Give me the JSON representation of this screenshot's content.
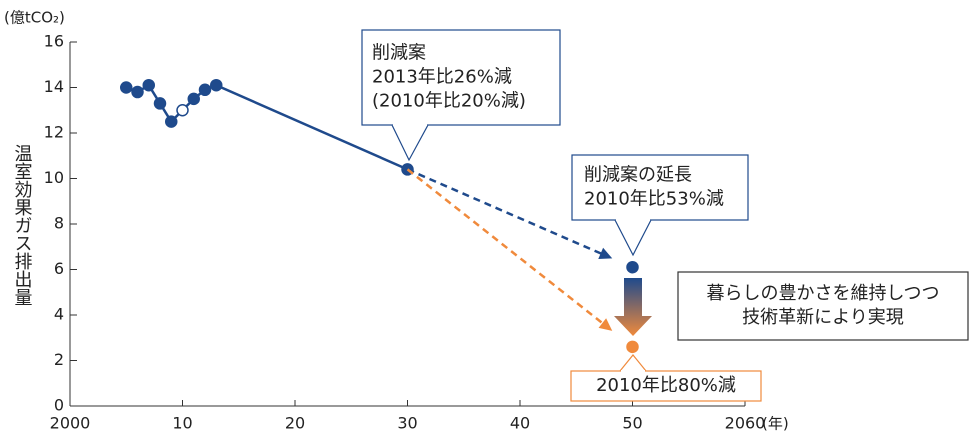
{
  "chart_data": {
    "type": "line",
    "y_label_unit": "(億tCO₂)",
    "y_label": "温室効果ガス排出量",
    "x_label": "(年)",
    "xlim": [
      2000,
      2060
    ],
    "xticks": [
      2000,
      {
        "value": 2010,
        "label": "10"
      },
      {
        "value": 2020,
        "label": "20"
      },
      {
        "value": 2030,
        "label": "30"
      },
      {
        "value": 2040,
        "label": "40"
      },
      {
        "value": 2050,
        "label": "50"
      },
      2060
    ],
    "ylim": [
      0,
      16
    ],
    "yticks": [
      0,
      2,
      4,
      6,
      8,
      10,
      12,
      14,
      16
    ],
    "series": [
      {
        "color": "#1f4a8c",
        "x": [
          2005,
          2006,
          2007,
          2008,
          2009,
          2010,
          2011,
          2012,
          2013,
          2030
        ],
        "values": [
          14.0,
          13.8,
          14.1,
          13.3,
          12.5,
          13.0,
          13.5,
          13.9,
          14.1,
          10.4
        ],
        "hollow_x": [
          2010
        ]
      },
      {
        "color": "#1f4a8c",
        "x": [
          2030,
          2050
        ],
        "values": [
          10.4,
          6.1
        ],
        "dashed": true
      },
      {
        "color": "#f08a3c",
        "x": [
          2030,
          2050
        ],
        "values": [
          10.4,
          2.6
        ],
        "dashed": true
      }
    ],
    "annotations": [
      {
        "lines": [
          "削減案",
          "2013年比26%減",
          "(2010年比20%減)"
        ]
      },
      {
        "lines": [
          "削減案の延長",
          "2010年比53%減"
        ]
      },
      {
        "lines": [
          "2010年比80%減"
        ]
      },
      {
        "lines": [
          "暮らしの豊かさを維持しつつ",
          "技術革新により実現"
        ]
      }
    ]
  }
}
